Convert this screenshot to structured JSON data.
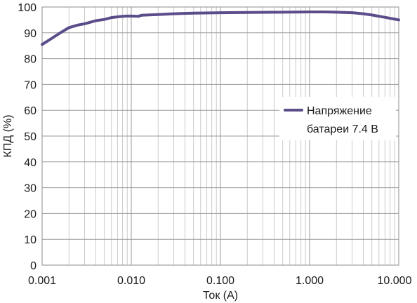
{
  "chart_data": {
    "type": "line",
    "xlabel": "Ток (А)",
    "ylabel": "КПД (%)",
    "xscale": "log",
    "xlim": [
      0.001,
      10
    ],
    "ylim": [
      0,
      100
    ],
    "grid": true,
    "x_tick_labels": [
      "0.001",
      "0.010",
      "0.100",
      "1.000",
      "10.000"
    ],
    "x_ticks": [
      0.001,
      0.01,
      0.1,
      1,
      10
    ],
    "y_ticks": [
      0,
      10,
      20,
      30,
      40,
      50,
      60,
      70,
      80,
      90,
      100
    ],
    "legend": {
      "placement": "right",
      "labels": [
        "Напряжение",
        "батареи 7.4 В"
      ]
    },
    "series": [
      {
        "color": "#5b4d8a",
        "x": [
          0.001,
          0.0013,
          0.0016,
          0.002,
          0.0025,
          0.003,
          0.004,
          0.005,
          0.006,
          0.007,
          0.008,
          0.009,
          0.01,
          0.012,
          0.013,
          0.015,
          0.02,
          0.03,
          0.05,
          0.1,
          0.2,
          0.5,
          1,
          1.5,
          2,
          3,
          4,
          5,
          7,
          10
        ],
        "y": [
          85.5,
          88,
          90,
          92,
          93,
          93.5,
          94.7,
          95.2,
          95.9,
          96.2,
          96.4,
          96.5,
          96.5,
          96.4,
          96.8,
          96.9,
          97.1,
          97.4,
          97.6,
          97.8,
          97.9,
          98.0,
          98.1,
          98.1,
          98.0,
          97.8,
          97.4,
          96.9,
          96.0,
          95.0
        ]
      }
    ]
  }
}
